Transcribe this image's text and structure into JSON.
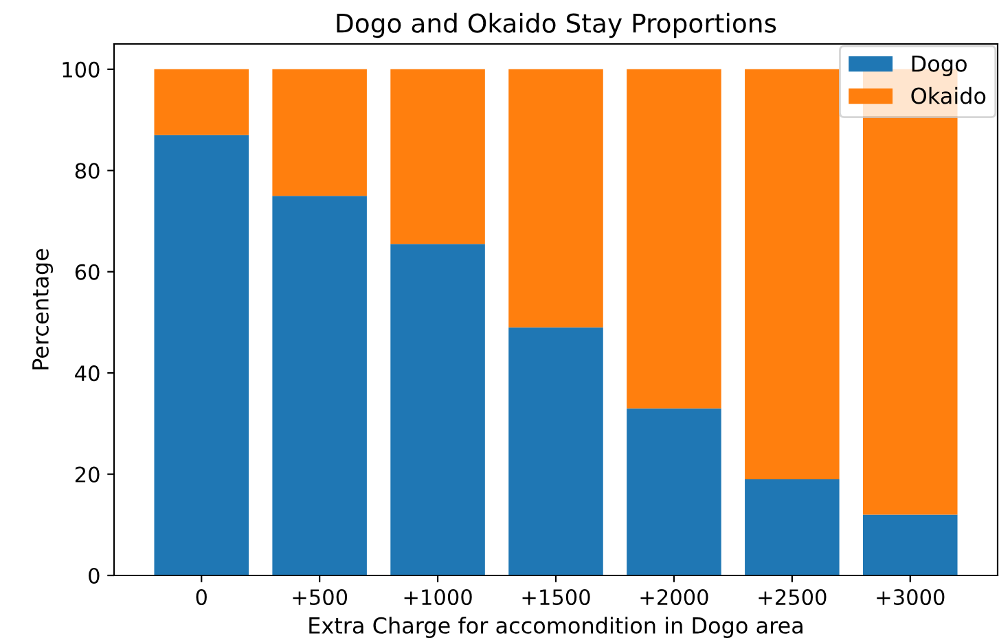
{
  "chart_data": {
    "type": "bar",
    "title": "Dogo and Okaido Stay Proportions",
    "xlabel": "Extra Charge for accomondition in Dogo area",
    "ylabel": "Percentage",
    "categories": [
      "0",
      "+500",
      "+1000",
      "+1500",
      "+2000",
      "+2500",
      "+3000"
    ],
    "stacked": true,
    "series": [
      {
        "name": "Dogo",
        "color": "#1f77b4",
        "values": [
          87,
          75,
          65.5,
          49,
          33,
          19,
          12
        ]
      },
      {
        "name": "Okaido",
        "color": "#ff7f0e",
        "values": [
          13,
          25,
          34.5,
          51,
          67,
          81,
          88
        ]
      }
    ],
    "ylim": [
      0,
      105
    ],
    "yticks": [
      0,
      20,
      40,
      60,
      80,
      100
    ],
    "grid": false,
    "legend": "top right"
  }
}
